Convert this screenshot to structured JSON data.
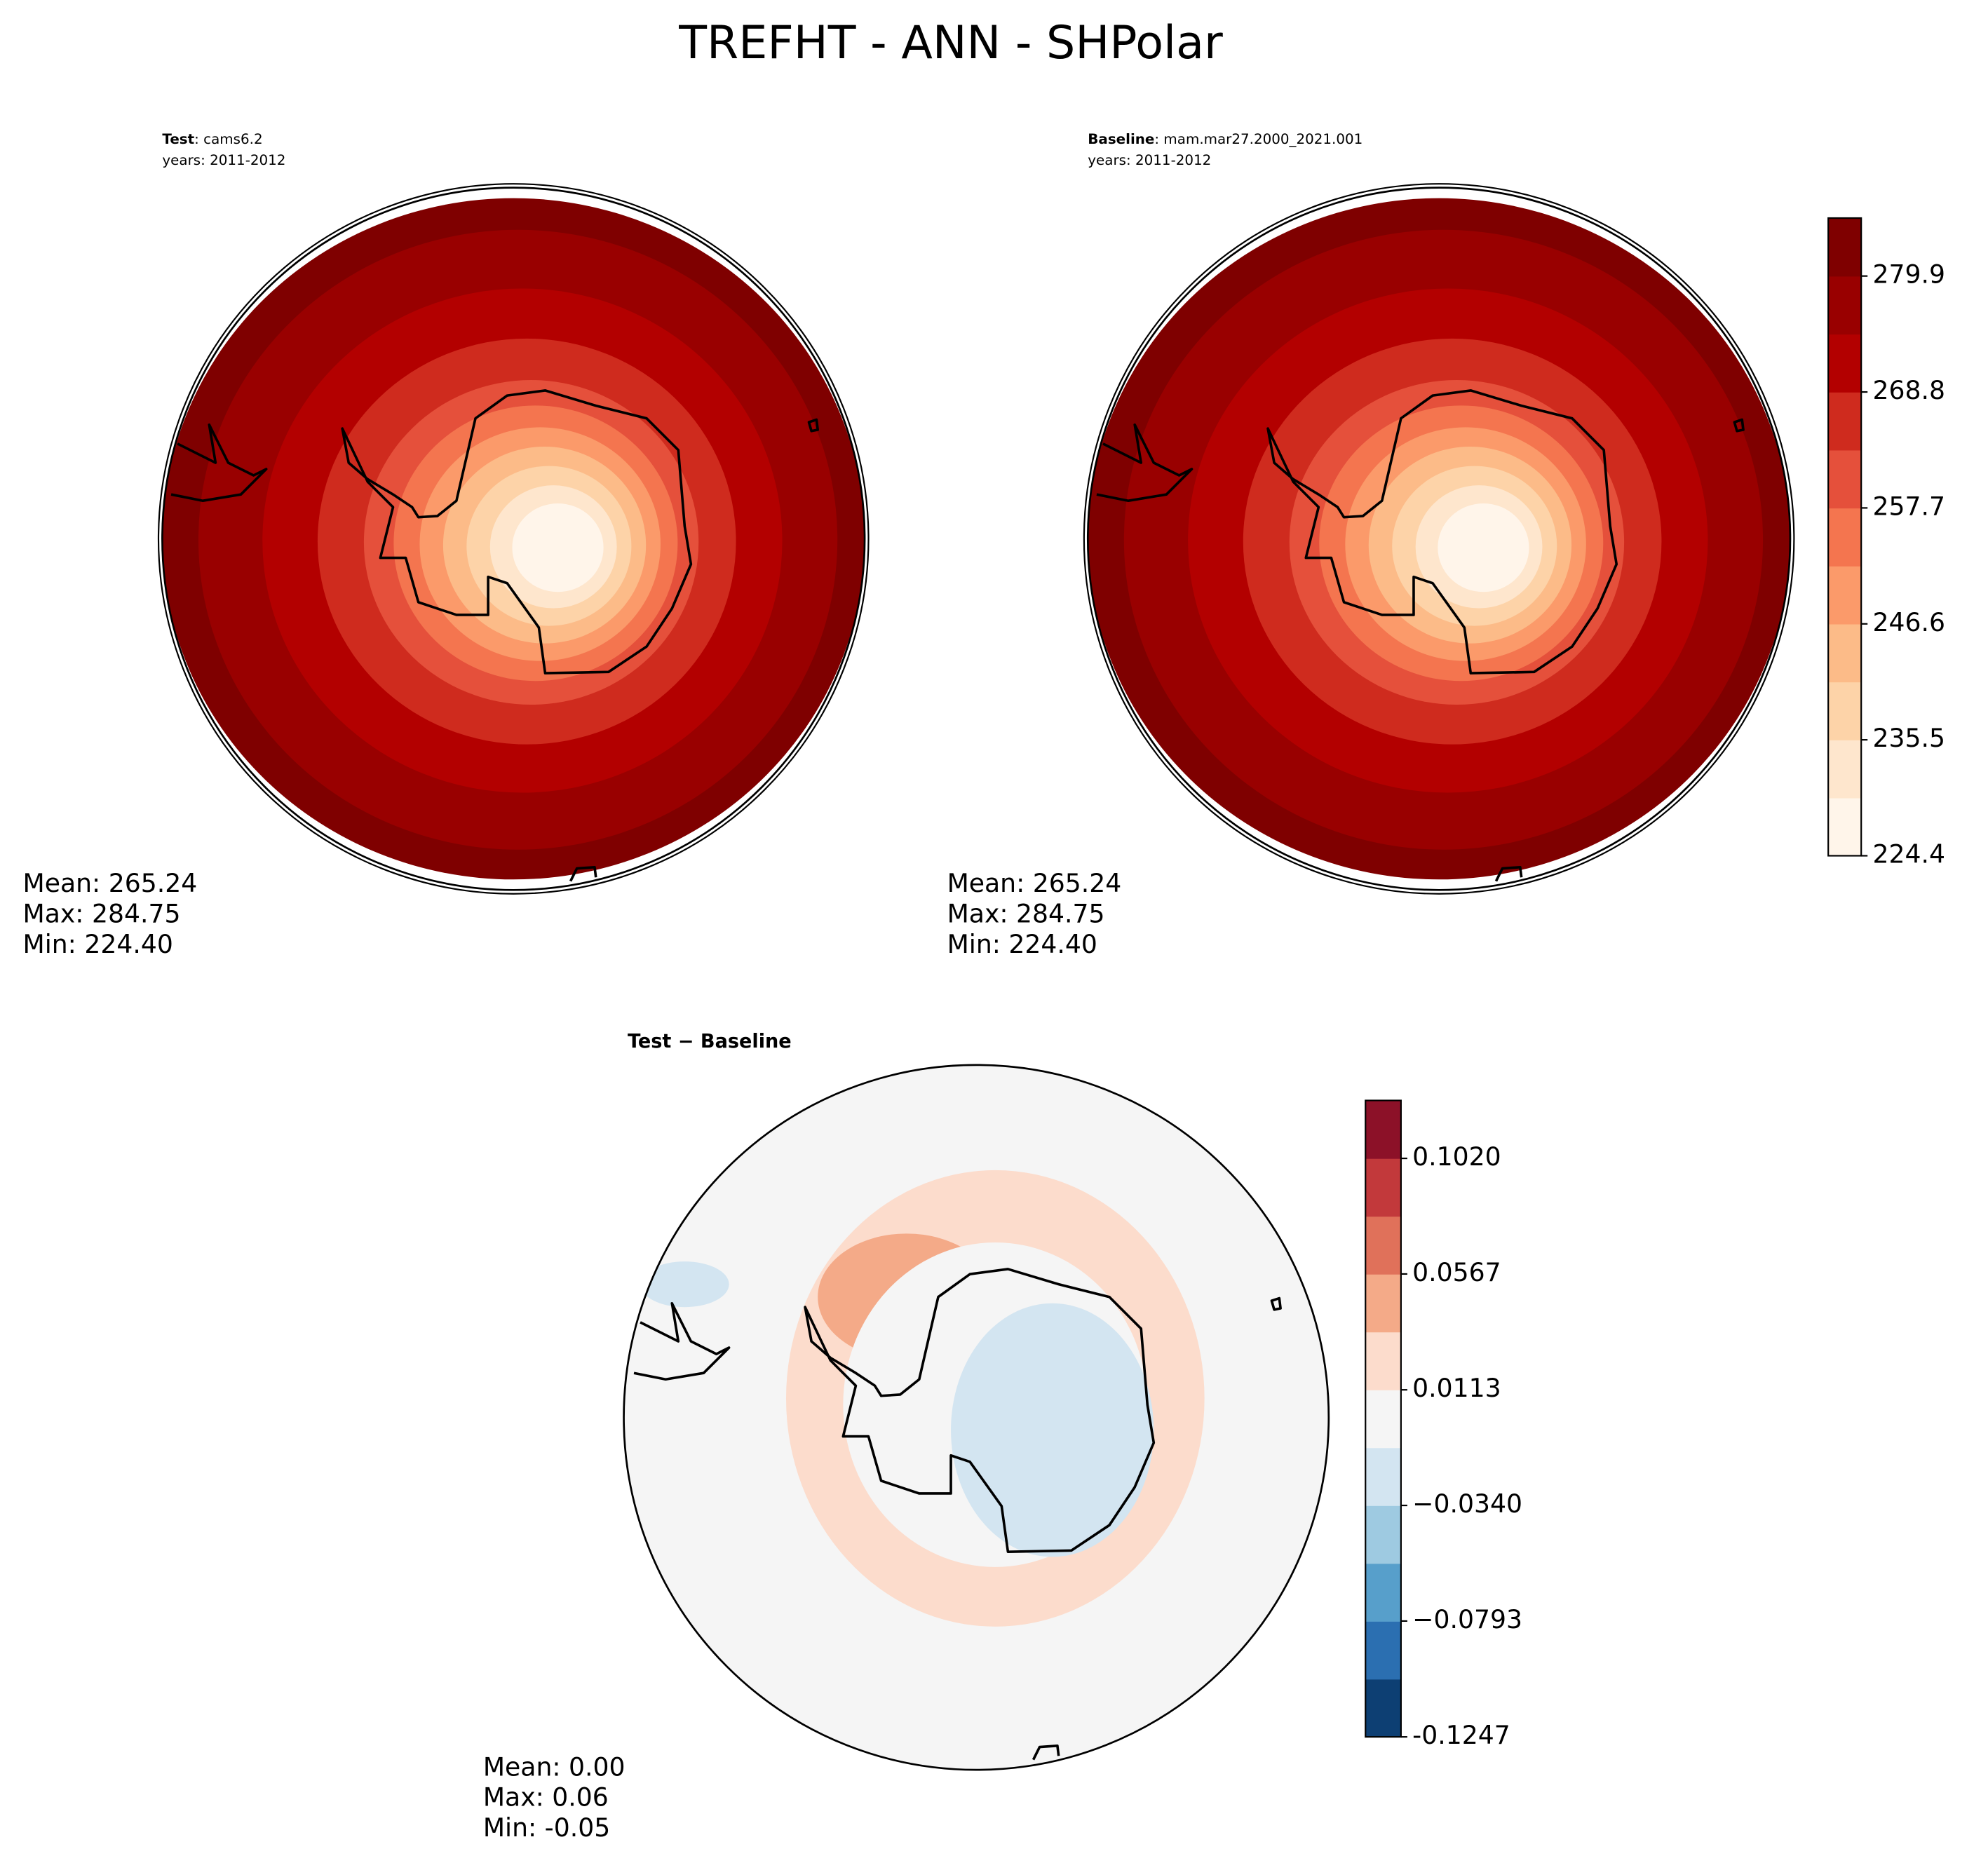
{
  "title": "TREFHT - ANN - SHPolar",
  "chart_data": [
    {
      "type": "contour-map",
      "case_label": "Test",
      "case_name": ": cams6.2",
      "years": "years: 2011-2012",
      "stats": [
        "Mean: 265.24",
        "Max: 284.75",
        "Min: 224.40"
      ],
      "colors": [
        "#fff5ea",
        "#fee6cd",
        "#fdd3a8",
        "#fcbb88",
        "#fb9a6a",
        "#f4754f",
        "#e5503b",
        "#cf2b1e",
        "#b30000",
        "#990000",
        "#7f0000"
      ]
    },
    {
      "type": "contour-map",
      "case_label": "Baseline",
      "case_name": ": mam.mar27.2000_2021.001",
      "years": "years: 2011-2012",
      "stats": [
        "Mean: 265.24",
        "Max: 284.75",
        "Min: 224.40"
      ],
      "colors": [
        "#fff5ea",
        "#fee6cd",
        "#fdd3a8",
        "#fcbb88",
        "#fb9a6a",
        "#f4754f",
        "#e5503b",
        "#cf2b1e",
        "#b30000",
        "#990000",
        "#7f0000"
      ],
      "ylim": [
        224.4,
        285.45
      ],
      "yticks": [
        224.4,
        235.5,
        246.6,
        257.7,
        268.8,
        279.9
      ]
    },
    {
      "type": "diff-map",
      "title": "Test − Baseline",
      "stats": [
        "Mean:  0.00",
        "Max:  0.06",
        "Min: -0.05"
      ],
      "colors": [
        "#0d3f73",
        "#2b6fb1",
        "#579fcb",
        "#9ecae1",
        "#d3e5f1",
        "#f5f5f5",
        "#fcdccc",
        "#f4aa88",
        "#e0715a",
        "#c2393b",
        "#8c1128"
      ],
      "ylim": [
        -0.1247,
        0.1247
      ],
      "yticks": [
        -0.1247,
        {
          "value": -0.0793,
          "label": "−0.0793"
        },
        {
          "value": -0.034,
          "label": "−0.0340"
        },
        0.0113,
        0.0567,
        {
          "value": 0.102,
          "label": "0.1020"
        }
      ]
    }
  ]
}
